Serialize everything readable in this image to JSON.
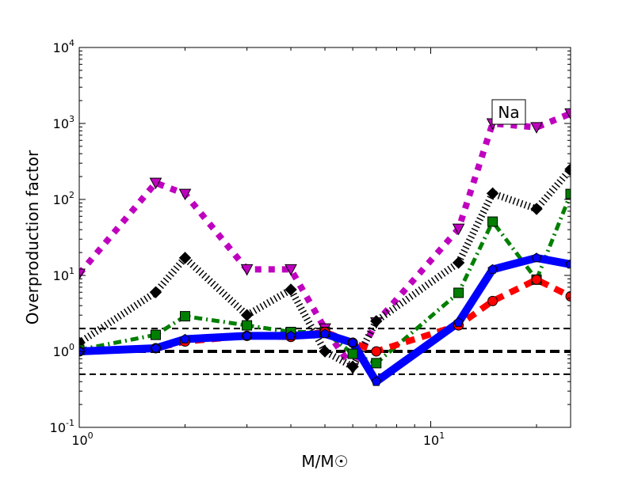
{
  "chart_data": {
    "type": "line",
    "title": "",
    "annotation": "Na",
    "xlabel": "M/M☉",
    "ylabel": "Overproduction factor",
    "xscale": "log",
    "yscale": "log",
    "xlim": [
      1,
      25
    ],
    "ylim": [
      0.1,
      10000
    ],
    "x_ticks": [
      {
        "value": 1,
        "base": "10",
        "exp": "0"
      },
      {
        "value": 10,
        "base": "10",
        "exp": "1"
      }
    ],
    "y_ticks": [
      {
        "value": 0.1,
        "base": "10",
        "exp": "-1"
      },
      {
        "value": 1,
        "base": "10",
        "exp": "0"
      },
      {
        "value": 10,
        "base": "10",
        "exp": "1"
      },
      {
        "value": 100,
        "base": "10",
        "exp": "2"
      },
      {
        "value": 1000,
        "base": "10",
        "exp": "3"
      },
      {
        "value": 10000,
        "base": "10",
        "exp": "4"
      }
    ],
    "reference_lines": [
      2,
      1,
      0.5
    ],
    "x": [
      1,
      1.65,
      2,
      3,
      4,
      5,
      6,
      7,
      12,
      15,
      20,
      25
    ],
    "series": [
      {
        "name": "magenta",
        "color": "#bf00bf",
        "marker": "triangle-down",
        "style": "dotted",
        "values": [
          10.5,
          165,
          118,
          12,
          12,
          2,
          0.6,
          2.4,
          41,
          1000,
          890,
          1350
        ]
      },
      {
        "name": "black",
        "color": "#000000",
        "marker": "diamond",
        "style": "dense-dotted",
        "values": [
          1.3,
          6,
          17,
          3,
          6.5,
          1,
          0.63,
          2.5,
          14.7,
          120,
          75,
          250
        ]
      },
      {
        "name": "green",
        "color": "#007f00",
        "marker": "square",
        "style": "dashdot",
        "values": [
          1.05,
          1.65,
          2.9,
          2.2,
          1.8,
          1.8,
          0.93,
          0.7,
          5.9,
          51,
          8.8,
          118
        ]
      },
      {
        "name": "red",
        "color": "#ff0000",
        "marker": "circle",
        "style": "dashed",
        "values": [
          1,
          1.1,
          1.35,
          1.6,
          1.55,
          1.8,
          1.3,
          1,
          2.2,
          4.6,
          8.8,
          5.3
        ]
      },
      {
        "name": "blue",
        "color": "#0000ff",
        "marker": "pentagon",
        "style": "solid",
        "values": [
          1,
          1.1,
          1.45,
          1.6,
          1.6,
          1.7,
          1.3,
          0.4,
          2.4,
          12,
          17,
          14
        ]
      }
    ]
  }
}
